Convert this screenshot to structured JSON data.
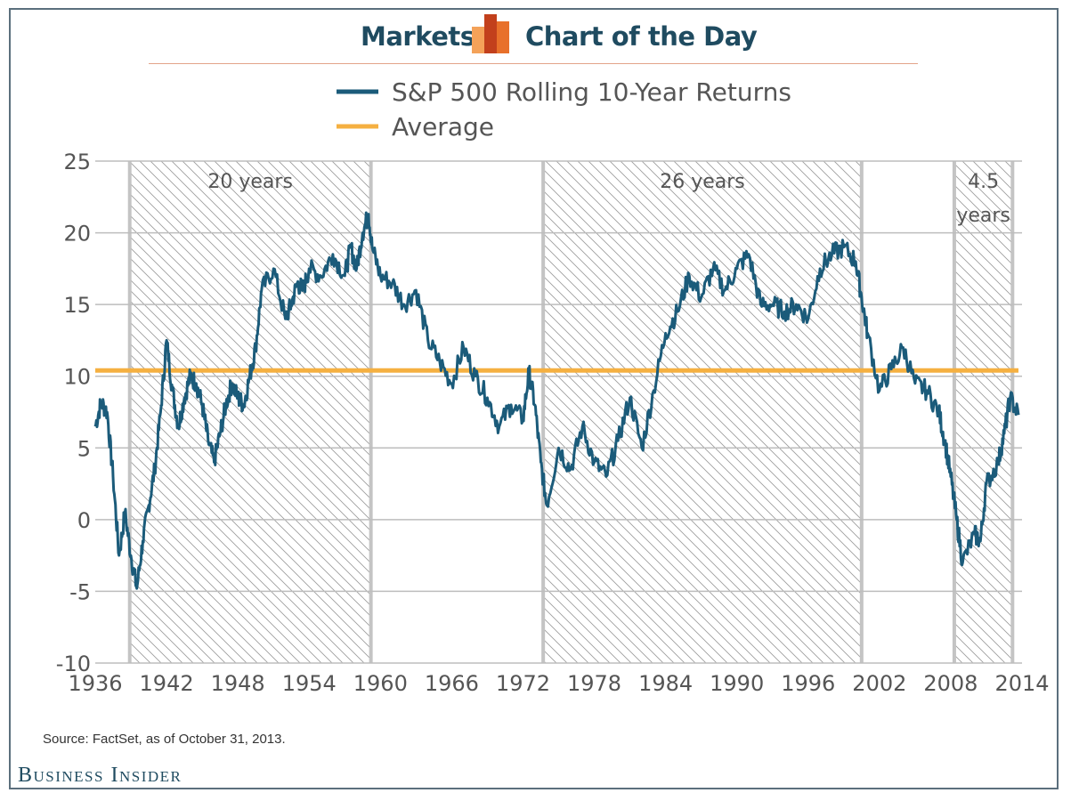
{
  "header": {
    "left_label": "Markets",
    "right_label": "Chart of the Day",
    "logo_icon": "bar-chart-logo-icon",
    "accent_colors": [
      "#f4a259",
      "#e8702a",
      "#c2401c"
    ]
  },
  "footer": {
    "source": "Source: FactSet, as of October 31, 2013.",
    "brand": "Business Insider"
  },
  "chart_data": {
    "type": "line",
    "title": "",
    "xlabel": "",
    "ylabel": "",
    "xlim": [
      1936,
      2014
    ],
    "ylim": [
      -10,
      25
    ],
    "x_ticks": [
      "1936",
      "1942",
      "1948",
      "1954",
      "1960",
      "1966",
      "1972",
      "1978",
      "1984",
      "1990",
      "1996",
      "2002",
      "2008",
      "2014"
    ],
    "y_ticks": [
      "25",
      "20",
      "15",
      "10",
      "5",
      "0",
      "-5",
      "-10"
    ],
    "grid": true,
    "legend_position": "top",
    "legend": [
      {
        "label": "S&P 500 Rolling 10-Year Returns",
        "color": "#1b5b7a"
      },
      {
        "label": "Average",
        "color": "#f5b041"
      }
    ],
    "average": 10.4,
    "shaded_periods": [
      {
        "start": 1938.9,
        "end": 1959.2,
        "label": "20 years"
      },
      {
        "start": 1973.7,
        "end": 2000.5,
        "label": "26 years"
      },
      {
        "start": 2008.3,
        "end": 2013.2,
        "label": "4.5 years"
      }
    ],
    "series": [
      {
        "name": "S&P 500 Rolling 10-Year Returns",
        "x": [
          1936.0,
          1936.5,
          1937.0,
          1937.5,
          1938.0,
          1938.5,
          1939.0,
          1939.5,
          1940.0,
          1940.5,
          1941.0,
          1941.5,
          1942.0,
          1942.5,
          1943.0,
          1943.5,
          1944.0,
          1944.5,
          1945.0,
          1945.5,
          1946.0,
          1946.5,
          1947.0,
          1947.5,
          1948.0,
          1948.5,
          1949.0,
          1949.5,
          1950.0,
          1951.0,
          1952.0,
          1952.5,
          1953.0,
          1953.5,
          1954.0,
          1955.0,
          1956.0,
          1957.0,
          1957.5,
          1958.0,
          1958.5,
          1959.0,
          1959.3,
          1960.0,
          1961.0,
          1962.0,
          1963.0,
          1964.0,
          1965.0,
          1966.0,
          1967.0,
          1968.0,
          1969.0,
          1970.0,
          1971.0,
          1972.0,
          1972.5,
          1973.0,
          1973.5,
          1974.0,
          1975.0,
          1976.0,
          1977.0,
          1978.0,
          1979.0,
          1980.0,
          1981.0,
          1982.0,
          1983.0,
          1984.0,
          1985.0,
          1986.0,
          1987.0,
          1988.0,
          1989.0,
          1990.0,
          1991.0,
          1992.0,
          1993.0,
          1994.0,
          1995.0,
          1996.0,
          1997.0,
          1998.0,
          1999.0,
          2000.0,
          2000.5,
          2001.0,
          2002.0,
          2003.0,
          2004.0,
          2005.0,
          2006.0,
          2007.0,
          2007.5,
          2008.0,
          2008.5,
          2009.0,
          2010.0,
          2010.5,
          2011.0,
          2012.0,
          2012.5,
          2013.0,
          2013.7
        ],
        "values": [
          6.5,
          8.2,
          7.5,
          3.0,
          -2.5,
          0.5,
          -2.5,
          -4.8,
          -1.5,
          1.0,
          3.5,
          7.5,
          12.5,
          9.0,
          6.5,
          8.5,
          10.0,
          9.5,
          8.0,
          5.5,
          4.0,
          6.0,
          8.0,
          9.5,
          8.5,
          8.0,
          10.0,
          12.0,
          16.0,
          17.5,
          14.0,
          15.0,
          16.5,
          16.0,
          17.5,
          17.0,
          18.5,
          17.0,
          19.0,
          17.5,
          20.0,
          21.3,
          19.0,
          17.0,
          16.5,
          15.0,
          16.0,
          12.5,
          11.0,
          9.5,
          12.0,
          10.0,
          8.5,
          6.5,
          8.0,
          7.0,
          10.3,
          8.0,
          4.0,
          1.0,
          5.0,
          3.5,
          6.5,
          4.0,
          3.0,
          5.5,
          8.5,
          5.0,
          9.0,
          13.0,
          14.5,
          17.0,
          15.5,
          17.5,
          16.0,
          17.5,
          18.5,
          15.0,
          15.0,
          14.5,
          15.0,
          14.0,
          17.5,
          18.5,
          19.0,
          18.0,
          15.5,
          13.0,
          9.0,
          10.5,
          12.0,
          9.5,
          9.0,
          7.5,
          5.5,
          3.0,
          0.0,
          -3.0,
          -1.0,
          -1.5,
          2.5,
          4.0,
          6.0,
          8.5,
          7.3
        ]
      }
    ]
  }
}
